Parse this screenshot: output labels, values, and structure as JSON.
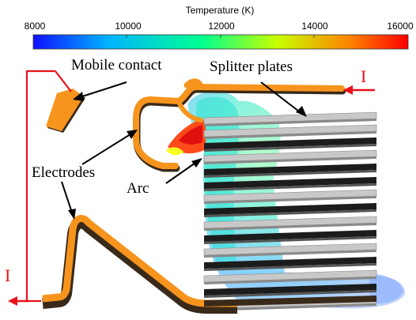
{
  "colorbar": {
    "title": "Temperature (K)",
    "ticks": [
      "8000",
      "10000",
      "12000",
      "14000",
      "16000"
    ],
    "min": 8000,
    "max": 16000,
    "colors": [
      "#1010ff",
      "#00c8ff",
      "#00ff80",
      "#c8ff00",
      "#ff8000",
      "#ff0000"
    ]
  },
  "labels": {
    "mobile_contact": "Mobile contact",
    "splitter_plates": "Splitter plates",
    "electrodes": "Electrodes",
    "arc": "Arc",
    "current_top": "I",
    "current_left": "I"
  },
  "colors": {
    "electrode": "#f7941d",
    "electrode_dark": "#3a2a1a",
    "current_path": "#e8111b",
    "plate_light": "#c8c8c8",
    "plate_dark": "#1c1c1c"
  }
}
